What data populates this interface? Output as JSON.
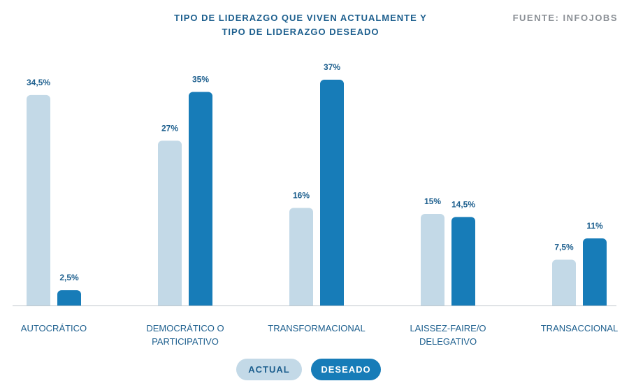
{
  "header": {
    "title_line1": "TIPO DE LIDERAZGO QUE VIVEN ACTUALMENTE Y",
    "title_line2": "TIPO DE LIDERAZGO DESEADO",
    "source": "FUENTE: INFOJOBS"
  },
  "colors": {
    "actual": "#c3d9e7",
    "desired": "#177cb8",
    "text": "#1d5f8e",
    "axis": "#bfc6cc"
  },
  "legend": {
    "actual_label": "ACTUAL",
    "desired_label": "DESEADO"
  },
  "chart_data": {
    "type": "bar",
    "categories": [
      [
        "AUTOCRÁTICO"
      ],
      [
        "DEMOCRÁTICO O",
        "PARTICIPATIVO"
      ],
      [
        "TRANSFORMACIONAL"
      ],
      [
        "LAISSEZ-FAIRE/O",
        "DELEGATIVO"
      ],
      [
        "TRANSACCIONAL"
      ]
    ],
    "series": [
      {
        "name": "ACTUAL",
        "values": [
          34.5,
          27,
          16,
          15,
          7.5
        ],
        "labels": [
          "34,5%",
          "27%",
          "16%",
          "15%",
          "7,5%"
        ]
      },
      {
        "name": "DESEADO",
        "values": [
          2.5,
          35,
          37,
          14.5,
          11
        ],
        "labels": [
          "2,5%",
          "35%",
          "37%",
          "14,5%",
          "11%"
        ]
      }
    ],
    "ylim": [
      0,
      37
    ],
    "grid": false,
    "legend_position": "bottom"
  }
}
